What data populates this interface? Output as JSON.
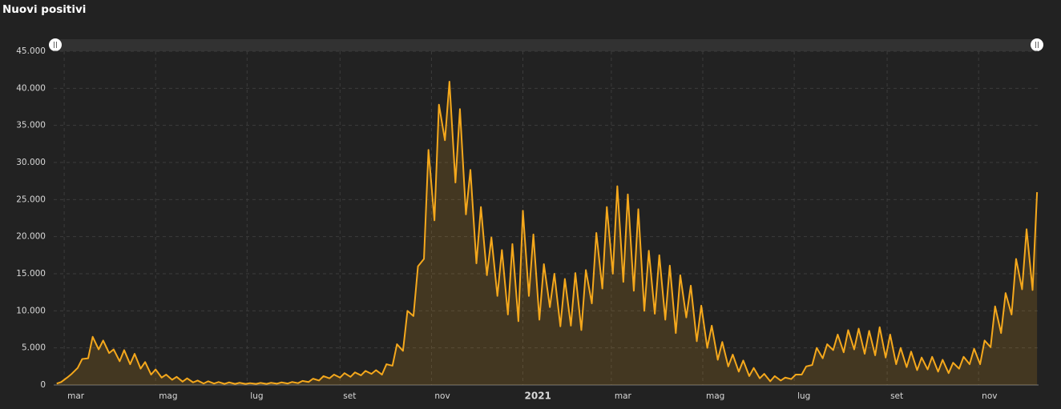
{
  "chart_data": {
    "type": "area-line",
    "title": "Nuovi positivi",
    "x": [
      -5,
      -2,
      2,
      5,
      9,
      12,
      16,
      19,
      23,
      26,
      30,
      33,
      37,
      40,
      44,
      47,
      51,
      54,
      58,
      61,
      65,
      68,
      72,
      75,
      79,
      82,
      86,
      89,
      93,
      96,
      100,
      103,
      107,
      110,
      114,
      117,
      121,
      124,
      128,
      131,
      135,
      138,
      142,
      145,
      149,
      152,
      156,
      159,
      163,
      166,
      170,
      173,
      177,
      180,
      184,
      187,
      191,
      194,
      198,
      201,
      205,
      208,
      212,
      215,
      219,
      222,
      226,
      229,
      233,
      236,
      240,
      243,
      247,
      250,
      254,
      257,
      261,
      264,
      268,
      271,
      275,
      278,
      282,
      285,
      289,
      292,
      296,
      299,
      303,
      306,
      310,
      313,
      317,
      320,
      324,
      327,
      331,
      334,
      338,
      341,
      345,
      348,
      352,
      355,
      359,
      362,
      366,
      369,
      373,
      376,
      380,
      383,
      387,
      390,
      394,
      397,
      401,
      404,
      408,
      411,
      415,
      418,
      422,
      425,
      429,
      432,
      436,
      439,
      443,
      446,
      450,
      453,
      457,
      460,
      464,
      467,
      471,
      474,
      478,
      481,
      485,
      488,
      492,
      495,
      499,
      502,
      506,
      509,
      513,
      516,
      520,
      523,
      527,
      530,
      534,
      537,
      541,
      544,
      548,
      551,
      555,
      558,
      562,
      565,
      569,
      572,
      576,
      579,
      583,
      586,
      590,
      593,
      597,
      600,
      604,
      607,
      611,
      614,
      618,
      621,
      625,
      628,
      632,
      635,
      639,
      642,
      646,
      649
    ],
    "values": [
      200,
      400,
      1000,
      1500,
      2300,
      3500,
      3600,
      6500,
      4800,
      6000,
      4300,
      4800,
      3200,
      4700,
      2800,
      4200,
      2200,
      3100,
      1400,
      2100,
      1000,
      1400,
      700,
      1100,
      450,
      900,
      350,
      600,
      200,
      500,
      200,
      400,
      150,
      350,
      150,
      300,
      150,
      250,
      150,
      280,
      150,
      300,
      180,
      350,
      200,
      400,
      250,
      550,
      400,
      850,
      600,
      1200,
      900,
      1400,
      1000,
      1600,
      1100,
      1700,
      1300,
      1900,
      1500,
      2000,
      1400,
      2800,
      2600,
      5500,
      4600,
      10000,
      9300,
      16000,
      17000,
      31700,
      22200,
      37800,
      33000,
      40900,
      27300,
      37200,
      23000,
      29000,
      16400,
      24000,
      14800,
      19900,
      12000,
      18200,
      9500,
      19000,
      8600,
      23500,
      12000,
      20300,
      8800,
      16300,
      10500,
      15000,
      7900,
      14300,
      8000,
      15100,
      7400,
      15500,
      11000,
      20500,
      13000,
      24000,
      15000,
      26800,
      13900,
      25700,
      12700,
      23700,
      10000,
      18100,
      9600,
      17500,
      8800,
      16100,
      7000,
      14800,
      9100,
      13400,
      5900,
      10700,
      5000,
      8000,
      3400,
      5800,
      2500,
      4100,
      1800,
      3300,
      1200,
      2300,
      900,
      1500,
      500,
      1200,
      600,
      1000,
      800,
      1400,
      1400,
      2500,
      2700,
      5000,
      3600,
      5500,
      4700,
      6800,
      4400,
      7400,
      4800,
      7600,
      4200,
      7300,
      4000,
      7800,
      3700,
      6800,
      2800,
      5000,
      2400,
      4500,
      2000,
      3700,
      2100,
      3800,
      1800,
      3400,
      1600,
      3000,
      2200,
      3800,
      2800,
      4900,
      2800,
      6000,
      5100,
      10600,
      7000,
      12400,
      9500,
      17000,
      12900,
      21000,
      12800,
      26000
    ],
    "color": "#f5a81c",
    "xlim": [
      -7,
      650
    ],
    "xticks": [
      {
        "value": 0,
        "label": "mar"
      },
      {
        "value": 61,
        "label": "mag"
      },
      {
        "value": 122,
        "label": "lug"
      },
      {
        "value": 184,
        "label": "set"
      },
      {
        "value": 245,
        "label": "nov"
      },
      {
        "value": 306,
        "label": "2021"
      },
      {
        "value": 365,
        "label": "mar"
      },
      {
        "value": 426,
        "label": "mag"
      },
      {
        "value": 487,
        "label": "lug"
      },
      {
        "value": 549,
        "label": "set"
      },
      {
        "value": 610,
        "label": "nov"
      }
    ],
    "ylim": [
      0,
      45000
    ],
    "yticks": [
      0,
      {
        "value": 5000,
        "label": "5.000"
      },
      {
        "value": 10000,
        "label": "10.000"
      },
      {
        "value": 15000,
        "label": "15.000"
      },
      {
        "value": 20000,
        "label": "20.000"
      },
      {
        "value": 25000,
        "label": "25.000"
      },
      {
        "value": 30000,
        "label": "30.000"
      },
      {
        "value": 35000,
        "label": "35.000"
      },
      {
        "value": 40000,
        "label": "40.000"
      },
      {
        "value": 45000,
        "label": "45.000"
      }
    ],
    "grid": true
  }
}
